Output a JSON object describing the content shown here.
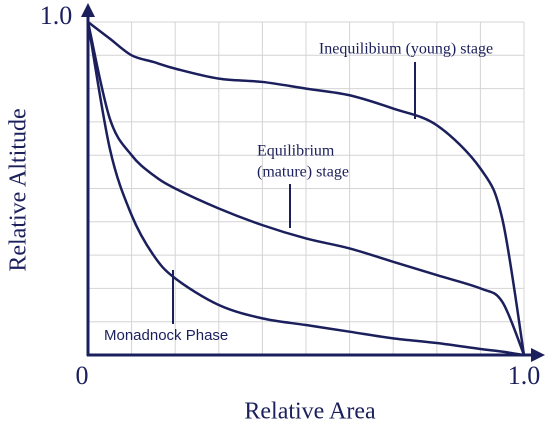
{
  "chart_data": {
    "type": "line",
    "xlabel": "Relative Area",
    "ylabel": "Relative Altitude",
    "xlim": [
      0,
      1
    ],
    "ylim": [
      0,
      1
    ],
    "xticks": [
      0,
      {
        "value": 1,
        "label": "1.0"
      }
    ],
    "yticks": [
      {
        "value": 1,
        "label": "1.0"
      }
    ],
    "grid": true,
    "xgrid": [
      0.1,
      0.2,
      0.3,
      0.4,
      0.5,
      0.6,
      0.7,
      0.8,
      0.9,
      1
    ],
    "ygrid": [
      0.1,
      0.2,
      0.3,
      0.4,
      0.5,
      0.6,
      0.7,
      0.8,
      0.9,
      1
    ],
    "color": "#1b1f5c",
    "x": [
      0,
      0.05,
      0.1,
      0.15,
      0.2,
      0.3,
      0.4,
      0.5,
      0.6,
      0.7,
      0.8,
      0.9,
      0.95,
      1
    ],
    "series": [
      {
        "values": [
          1,
          0.95,
          0.9,
          0.88,
          0.86,
          0.83,
          0.82,
          0.8,
          0.78,
          0.74,
          0.69,
          0.56,
          0.41,
          0
        ]
      },
      {
        "values": [
          1,
          0.71,
          0.6,
          0.54,
          0.5,
          0.44,
          0.39,
          0.35,
          0.32,
          0.28,
          0.24,
          0.2,
          0.16,
          0
        ]
      },
      {
        "values": [
          1,
          0.62,
          0.42,
          0.3,
          0.23,
          0.15,
          0.11,
          0.09,
          0.07,
          0.05,
          0.036,
          0.018,
          0.01,
          0
        ]
      }
    ],
    "annotations": [
      {
        "text": "Inequilibium (young) stage"
      },
      {
        "text": "Equilibrium"
      },
      {
        "text": "(mature) stage"
      },
      {
        "text": "Monadnock Phase"
      }
    ]
  }
}
